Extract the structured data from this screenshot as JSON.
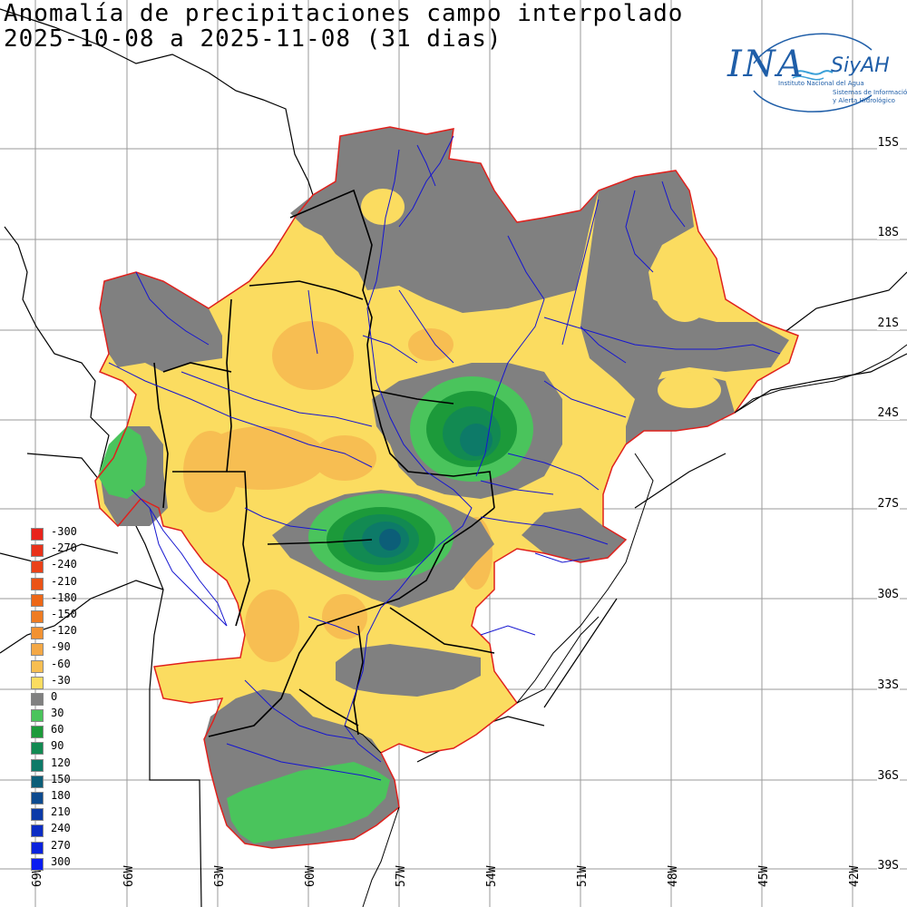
{
  "title": {
    "line1": "Anomalía de precipitaciones campo interpolado",
    "line2": "2025-10-08 a 2025-11-08 (31 dias)"
  },
  "logo": {
    "brand": "INA",
    "system": "SiyAH",
    "subtitle1": "Instituto Nacional del Agua",
    "subtitle2": "Sistemas de Información",
    "subtitle3": "y Alerta Hidrológico",
    "color": "#1f5ea8"
  },
  "latitude_labels": [
    "15S",
    "18S",
    "21S",
    "24S",
    "27S",
    "30S",
    "33S",
    "36S",
    "39S"
  ],
  "longitude_labels": [
    "69W",
    "66W",
    "63W",
    "60W",
    "57W",
    "54W",
    "51W",
    "48W",
    "45W",
    "42W"
  ],
  "legend": {
    "items": [
      {
        "value": "-300",
        "color": "#e8231c"
      },
      {
        "value": "-270",
        "color": "#e9321a"
      },
      {
        "value": "-240",
        "color": "#ea4118"
      },
      {
        "value": "-210",
        "color": "#eb5316"
      },
      {
        "value": "-180",
        "color": "#ed6717"
      },
      {
        "value": "-150",
        "color": "#ef7c22"
      },
      {
        "value": "-120",
        "color": "#f29232"
      },
      {
        "value": "-90",
        "color": "#f4a845"
      },
      {
        "value": "-60",
        "color": "#f7be52"
      },
      {
        "value": "-30",
        "color": "#fbdc60"
      },
      {
        "value": "0",
        "color": "#808080"
      },
      {
        "value": "30",
        "color": "#4ac45c"
      },
      {
        "value": "60",
        "color": "#1c9a3a"
      },
      {
        "value": "90",
        "color": "#128a52"
      },
      {
        "value": "120",
        "color": "#0d7a68"
      },
      {
        "value": "150",
        "color": "#0c5e78"
      },
      {
        "value": "180",
        "color": "#0d4a8e"
      },
      {
        "value": "210",
        "color": "#0c3aa8"
      },
      {
        "value": "240",
        "color": "#0b2cc4"
      },
      {
        "value": "270",
        "color": "#0a22dc"
      },
      {
        "value": "300",
        "color": "#0a1cf0"
      }
    ]
  },
  "colors": {
    "outline": "#e0201c",
    "rivers": "#1515d0",
    "borders": "#000000",
    "gridlines": "#9a9a9a"
  }
}
